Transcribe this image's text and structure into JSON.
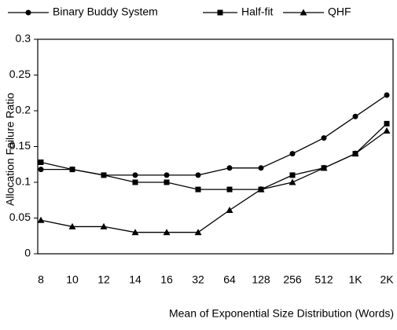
{
  "chart_data": {
    "type": "line",
    "x_label": "Mean of Exponential Size Distribution (Words)",
    "y_label": "Allocation Failure Ratio",
    "categories": [
      "8",
      "10",
      "12",
      "14",
      "16",
      "32",
      "64",
      "128",
      "256",
      "512",
      "1K",
      "2K"
    ],
    "series": [
      {
        "name": "Binary Buddy System",
        "color": "#000000",
        "marker": "circle",
        "values": [
          0.118,
          0.118,
          0.11,
          0.11,
          0.11,
          0.11,
          0.12,
          0.12,
          0.14,
          0.162,
          0.192,
          0.222
        ]
      },
      {
        "name": "Half-fit",
        "color": "#000000",
        "marker": "square",
        "values": [
          0.128,
          0.118,
          0.11,
          0.1,
          0.1,
          0.09,
          0.09,
          0.09,
          0.11,
          0.12,
          0.14,
          0.182
        ]
      },
      {
        "name": "QHF",
        "color": "#000000",
        "marker": "triangle",
        "values": [
          0.047,
          0.038,
          0.038,
          0.03,
          0.03,
          0.03,
          0.061,
          0.09,
          0.1,
          0.12,
          0.14,
          0.172
        ]
      }
    ],
    "ylim": [
      0,
      0.3
    ],
    "yticks": [
      0,
      0.05,
      0.1,
      0.15,
      0.2,
      0.25,
      0.3
    ],
    "grid": false,
    "legend": "top"
  }
}
